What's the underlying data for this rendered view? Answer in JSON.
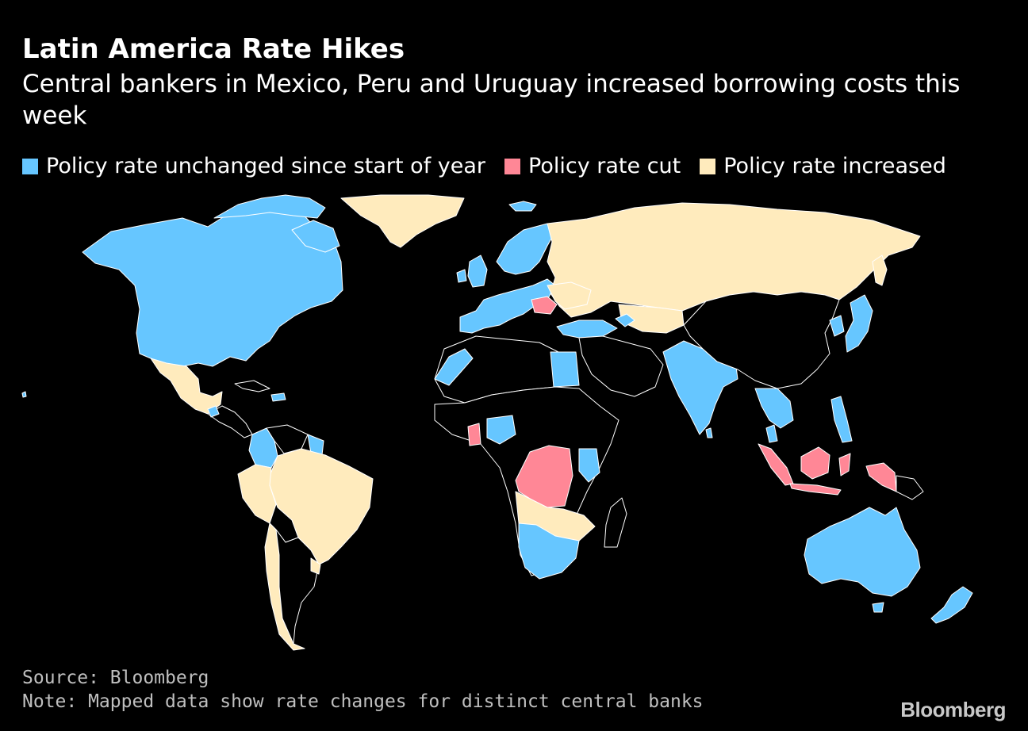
{
  "title": "Latin America Rate Hikes",
  "subtitle": "Central bankers in Mexico, Peru and Uruguay increased borrowing costs this week",
  "legend": [
    {
      "label": "Policy rate unchanged since start of year",
      "color": "#66c6ff"
    },
    {
      "label": "Policy rate cut",
      "color": "#ff8796"
    },
    {
      "label": "Policy rate increased",
      "color": "#ffebbd"
    }
  ],
  "colors": {
    "background": "#000000",
    "unchanged": "#66c6ff",
    "cut": "#ff8796",
    "increased": "#ffebbd",
    "no_data": "#000000",
    "border": "#ffffff"
  },
  "source": "Source: Bloomberg",
  "note": "Note: Mapped data show rate changes for distinct central banks",
  "brand": "Bloomberg"
}
